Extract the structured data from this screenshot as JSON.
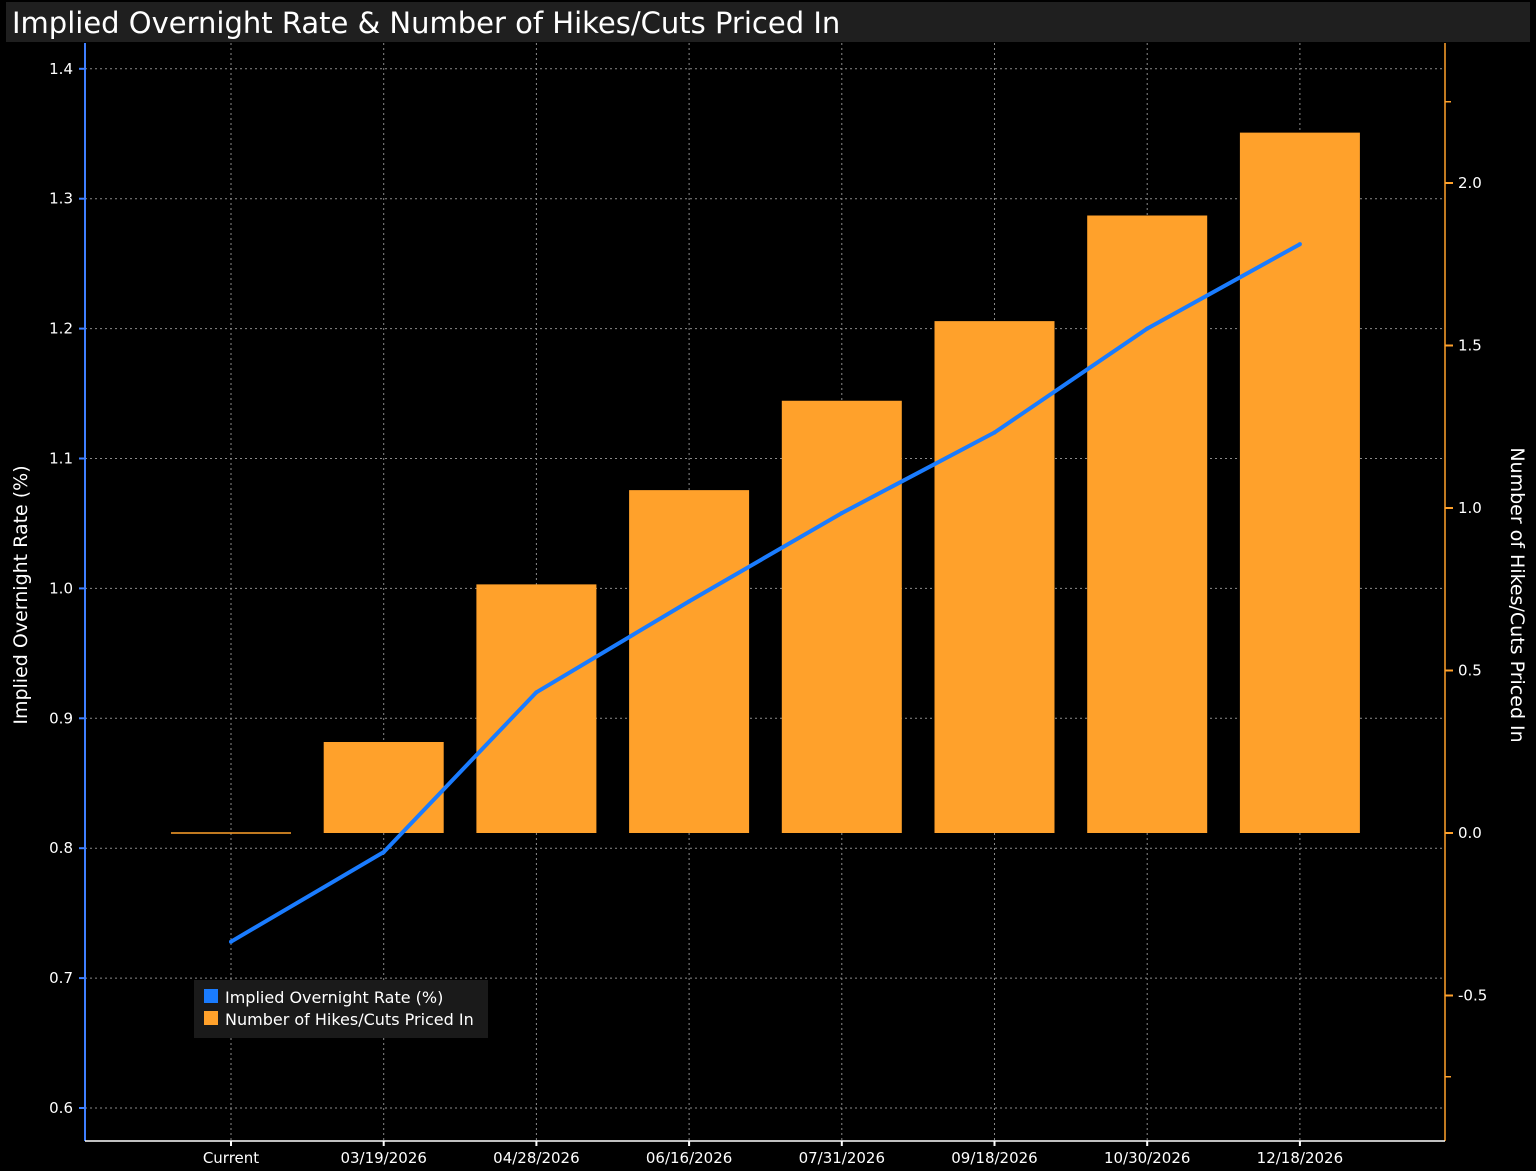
{
  "title": "Implied Overnight Rate & Number of Hikes/Cuts Priced In",
  "colors": {
    "line": "#1a7cff",
    "bar": "#ffa12b",
    "left_axis": "#3f7fff",
    "right_axis": "#ffa12b",
    "grid": "#8a8a8a"
  },
  "chart_data": {
    "type": "bar",
    "categories": [
      "Current",
      "03/19/2026",
      "04/28/2026",
      "06/16/2026",
      "07/31/2026",
      "09/18/2026",
      "10/30/2026",
      "12/18/2026"
    ],
    "series": [
      {
        "name": "Implied Overnight Rate (%)",
        "type": "line",
        "axis": "left",
        "values": [
          0.728,
          0.797,
          0.92,
          0.99,
          1.058,
          1.12,
          1.2,
          1.265
        ]
      },
      {
        "name": "Number of Hikes/Cuts Priced In",
        "type": "bar",
        "axis": "right",
        "values": [
          0.0,
          0.28,
          0.765,
          1.055,
          1.33,
          1.575,
          1.9,
          2.155
        ]
      }
    ],
    "ylabel": "Implied Overnight Rate (%)",
    "y2label": "Number of Hikes/Cuts Priced In",
    "ylim": [
      0.6,
      1.4
    ],
    "y2lim": [
      -0.5,
      2.0
    ],
    "yticks": [
      "0.6",
      "0.7",
      "0.8",
      "0.9",
      "1.0",
      "1.1",
      "1.2",
      "1.3",
      "1.4"
    ],
    "y2ticks": [
      "-0.5",
      "0.0",
      "0.5",
      "1.0",
      "1.5",
      "2.0"
    ],
    "grid": true,
    "legend": "bottom-left"
  }
}
